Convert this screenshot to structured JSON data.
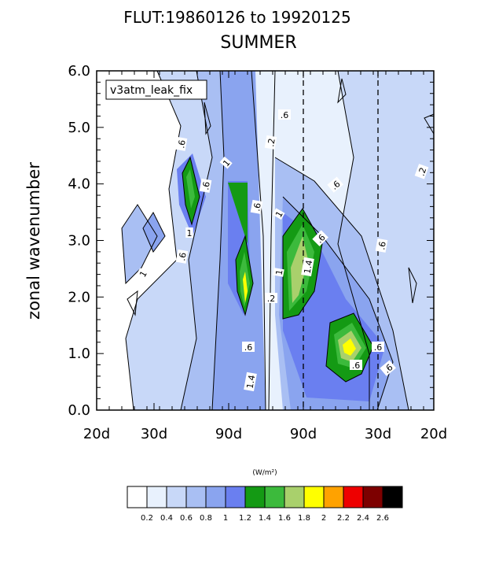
{
  "chart_data": {
    "type": "heatmap",
    "title": "FLUT:19860126 to 19920125",
    "subtitle": "SUMMER",
    "xlabel": "",
    "ylabel": "zonal wavenumber",
    "x_tick_labels": [
      "20d",
      "30d",
      "90d",
      "90d",
      "30d",
      "20d"
    ],
    "y_tick_labels": [
      "0.0",
      "1.0",
      "2.0",
      "3.0",
      "4.0",
      "5.0",
      "6.0"
    ],
    "ylim": [
      0,
      6
    ],
    "legend_label": "v3atm_leak_fix",
    "units": "(W/m²)",
    "colorbar": {
      "levels": [
        "0.2",
        "0.4",
        "0.6",
        "0.8",
        "1",
        "1.2",
        "1.4",
        "1.6",
        "1.8",
        "2",
        "2.2",
        "2.4",
        "2.6"
      ],
      "colors": [
        "#ffffff",
        "#e8f1fd",
        "#c8d8f8",
        "#a9bff3",
        "#8aa4ef",
        "#6a7ff0",
        "#149a14",
        "#3cba3c",
        "#a9d06c",
        "#ffff00",
        "#ffa200",
        "#ee0000",
        "#7d0000",
        "#000000"
      ]
    },
    "contour_labels": [
      ".6",
      ".6",
      "1",
      ".6",
      "1",
      ".6",
      ".2",
      ".6",
      "1",
      ".6",
      "1.4",
      "1",
      ".6",
      ".6",
      ".2",
      ".6",
      "1.4",
      "1",
      ".6",
      ".6",
      ".2",
      ".6"
    ],
    "dashed_lines_at_tick_index": [
      3,
      4
    ]
  }
}
